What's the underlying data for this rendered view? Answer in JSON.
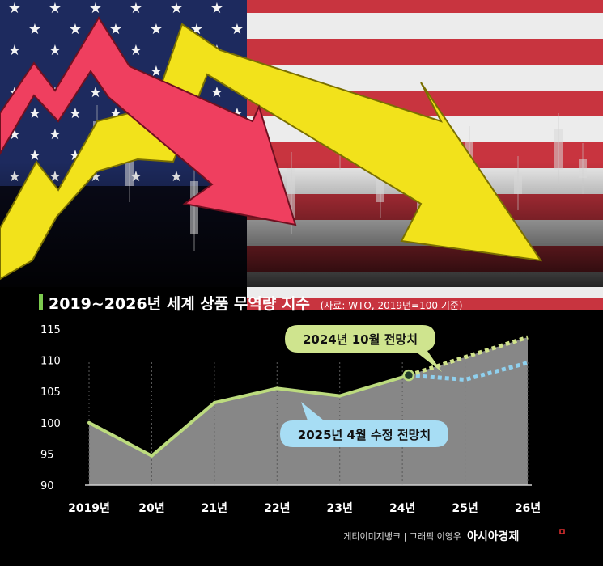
{
  "chart_data": {
    "type": "line",
    "title": "2019~2026년 세계 상품 무역량 지수",
    "source": "(자료: WTO, 2019년=100 기준)",
    "categories": [
      "2019년",
      "20년",
      "21년",
      "22년",
      "23년",
      "24년",
      "25년",
      "26년"
    ],
    "ylim": [
      90,
      115
    ],
    "yticks": [
      "115",
      "110",
      "105",
      "100",
      "95",
      "90"
    ],
    "series": [
      {
        "name": "",
        "x": [
          2019,
          2020,
          2021,
          2022,
          2023,
          2024.1
        ],
        "values": [
          100,
          94.7,
          103.2,
          105.5,
          104.3,
          107.6
        ],
        "color": "#bcdb7e",
        "style": "solid"
      },
      {
        "name": "2024년 10월 전망치",
        "x": [
          2024.1,
          2025,
          2026
        ],
        "values": [
          107.6,
          110.5,
          113.7
        ],
        "color": "#d1e38b",
        "style": "dotted"
      },
      {
        "name": "2025년 4월 수정 전망치",
        "x": [
          2024.1,
          2025,
          2026
        ],
        "values": [
          107.6,
          106.9,
          109.6
        ],
        "color": "#8fd0ee",
        "style": "dotted"
      }
    ],
    "area_fill": "#878787",
    "grid": false,
    "callouts": [
      {
        "label": "2024년 10월 전망치",
        "color": "#cfe48e"
      },
      {
        "label": "2025년 4월 수정 전망치",
        "color": "#a7ddf4"
      }
    ]
  },
  "credit": {
    "text": "게티이미지뱅크 | 그래픽 이영우",
    "brand": "아시아경제"
  }
}
